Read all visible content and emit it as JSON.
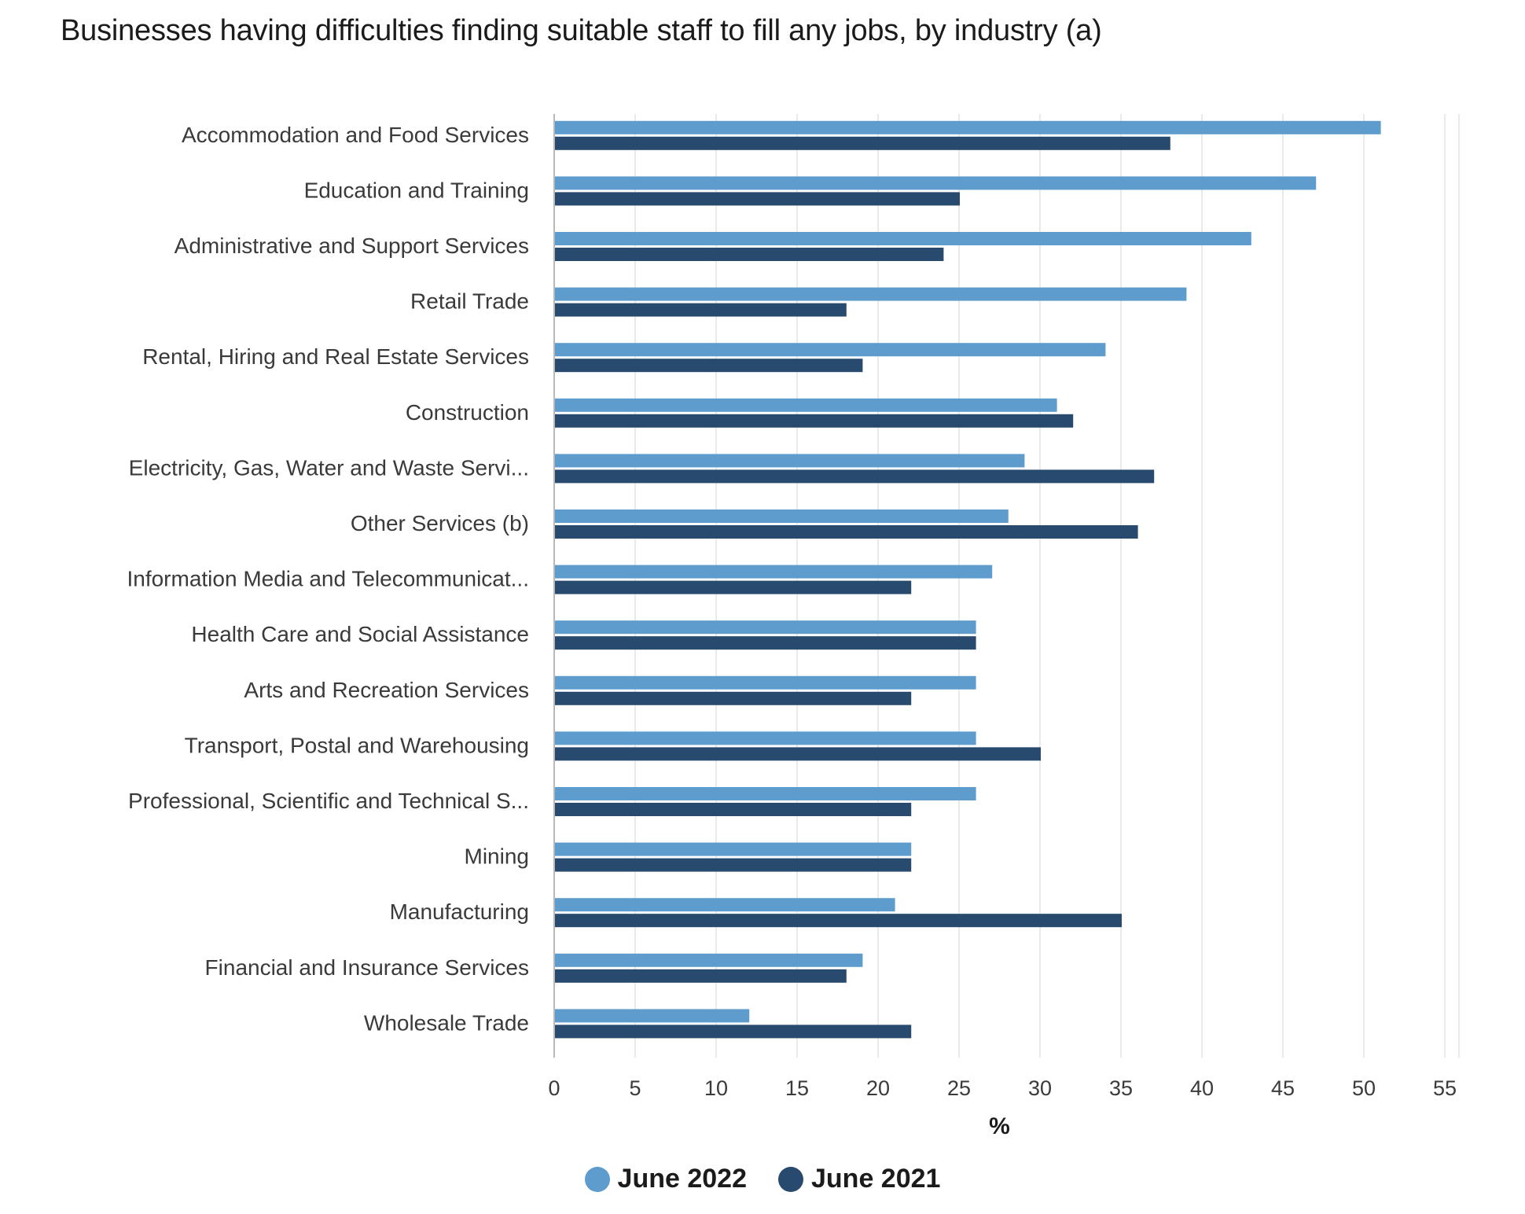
{
  "title": "Businesses having difficulties finding suitable staff to fill any jobs, by industry (a)",
  "chart_data": {
    "type": "bar",
    "orientation": "horizontal",
    "title": "Businesses having difficulties finding suitable staff to fill any jobs, by industry (a)",
    "xlabel": "%",
    "ylabel": "",
    "xlim": [
      0,
      55
    ],
    "x_ticks": [
      0,
      5,
      10,
      15,
      20,
      25,
      30,
      35,
      40,
      45,
      50,
      55
    ],
    "grid": true,
    "legend_position": "bottom-center",
    "categories": [
      "Accommodation and Food Services",
      "Education and Training",
      "Administrative and Support Services",
      "Retail Trade",
      "Rental, Hiring and Real Estate Services",
      "Construction",
      "Electricity, Gas, Water and Waste Servi...",
      "Other Services (b)",
      "Information Media and Telecommunicat...",
      "Health Care and Social Assistance",
      "Arts and Recreation Services",
      "Transport, Postal and Warehousing",
      "Professional, Scientific and Technical S...",
      "Mining",
      "Manufacturing",
      "Financial and Insurance Services",
      "Wholesale Trade"
    ],
    "series": [
      {
        "name": "June 2022",
        "color": "#5e9cce",
        "values": [
          51,
          47,
          43,
          39,
          34,
          31,
          29,
          28,
          27,
          26,
          26,
          26,
          26,
          22,
          21,
          19,
          12
        ]
      },
      {
        "name": "June 2021",
        "color": "#284a6e",
        "values": [
          38,
          25,
          24,
          18,
          19,
          32,
          37,
          36,
          22,
          26,
          22,
          30,
          22,
          22,
          35,
          18,
          22
        ]
      }
    ]
  }
}
